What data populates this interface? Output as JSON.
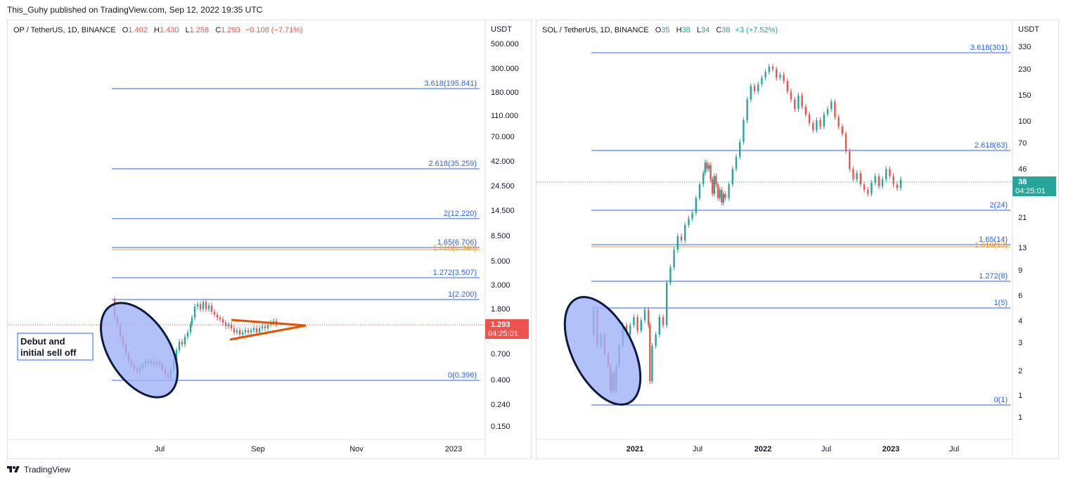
{
  "publisher_line": "This_Guhy published on TradingView.com, Sep 12, 2022 19:35 UTC",
  "footer": {
    "brand": "TradingView",
    "logo_icon": "tradingview-logo-icon"
  },
  "colors": {
    "fib_blue": "#2962ff",
    "fib_orange": "#ff9800",
    "up": "#26a69a",
    "down": "#ef5350",
    "ellipse_fill": "#9fb2f5",
    "triangle": "#e65100"
  },
  "chart_data": [
    {
      "type": "candlestick",
      "symbol": "OP / TetherUS, 1D, BINANCE",
      "ohlc": {
        "o_label": "O",
        "o": "1.402",
        "h_label": "H",
        "h": "1.430",
        "l_label": "L",
        "l": "1.258",
        "c_label": "C",
        "c": "1.293",
        "change": "−0.108 (−7.71%)"
      },
      "currency": "USDT",
      "y_scale": "log",
      "y_ticks": [
        "500.000",
        "300.000",
        "180.000",
        "110.000",
        "70.000",
        "42.000",
        "24.500",
        "14.500",
        "8.500",
        "5.000",
        "3.000",
        "1.800",
        "0.700",
        "0.400",
        "0.240",
        "0.150"
      ],
      "x_ticks": [
        "Jul",
        "Sep",
        "Nov",
        "2023"
      ],
      "last_price": "1.293",
      "countdown": "04:25:01",
      "fib_levels": [
        {
          "label": "3.618(195.841)",
          "value": 195.841
        },
        {
          "label": "2.618(35.259)",
          "value": 35.259
        },
        {
          "label": "2(12.220)",
          "value": 12.22
        },
        {
          "label": "1.65(6.706)",
          "value": 6.706
        },
        {
          "label": "1.618(6.348)",
          "value": 6.348,
          "color": "orange"
        },
        {
          "label": "1.272(3.507)",
          "value": 3.507
        },
        {
          "label": "1(2.200)",
          "value": 2.2
        },
        {
          "label": "0(0.396)",
          "value": 0.396
        }
      ],
      "annotation": "Debut and\ninitial sell off",
      "price_path": [
        [
          0,
          2.2
        ],
        [
          4,
          1.5
        ],
        [
          8,
          1.3
        ],
        [
          12,
          1.0
        ],
        [
          16,
          0.85
        ],
        [
          20,
          0.7
        ],
        [
          24,
          0.6
        ],
        [
          28,
          0.55
        ],
        [
          32,
          0.5
        ],
        [
          36,
          0.48
        ],
        [
          40,
          0.52
        ],
        [
          44,
          0.55
        ],
        [
          48,
          0.6
        ],
        [
          52,
          0.57
        ],
        [
          56,
          0.6
        ],
        [
          60,
          0.55
        ],
        [
          64,
          0.58
        ],
        [
          68,
          0.55
        ],
        [
          72,
          0.5
        ],
        [
          76,
          0.45
        ],
        [
          80,
          0.42
        ],
        [
          84,
          0.5
        ],
        [
          88,
          0.6
        ],
        [
          92,
          0.75
        ],
        [
          96,
          0.9
        ],
        [
          100,
          0.85
        ],
        [
          104,
          1.0
        ],
        [
          108,
          1.1
        ],
        [
          112,
          1.3
        ],
        [
          114,
          1.5
        ],
        [
          118,
          1.9
        ],
        [
          122,
          2.0
        ],
        [
          126,
          1.8
        ],
        [
          130,
          2.1
        ],
        [
          134,
          1.8
        ],
        [
          138,
          1.95
        ],
        [
          142,
          1.7
        ],
        [
          146,
          1.6
        ],
        [
          150,
          1.5
        ],
        [
          154,
          1.45
        ],
        [
          158,
          1.35
        ],
        [
          162,
          1.25
        ],
        [
          166,
          1.3
        ],
        [
          170,
          1.2
        ],
        [
          174,
          1.1
        ],
        [
          178,
          1.15
        ],
        [
          182,
          1.05
        ],
        [
          186,
          1.1
        ],
        [
          190,
          1.15
        ],
        [
          194,
          1.1
        ],
        [
          198,
          1.15
        ],
        [
          202,
          1.2
        ],
        [
          206,
          1.1
        ],
        [
          210,
          1.2
        ],
        [
          214,
          1.25
        ],
        [
          218,
          1.2
        ],
        [
          222,
          1.3
        ],
        [
          226,
          1.35
        ],
        [
          230,
          1.4
        ],
        [
          234,
          1.3
        ]
      ]
    },
    {
      "type": "candlestick",
      "symbol": "SOL / TetherUS, 1D, BINANCE",
      "ohlc": {
        "o_label": "O",
        "o": "35",
        "h_label": "H",
        "h": "38",
        "l_label": "L",
        "l": "34",
        "c_label": "C",
        "c": "38",
        "change": "+3 (+7.52%)"
      },
      "currency": "USDT",
      "y_scale": "log",
      "y_ticks": [
        "330",
        "230",
        "150",
        "100",
        "70",
        "46",
        "21",
        "13",
        "9",
        "6",
        "4",
        "3",
        "2",
        "1",
        "1"
      ],
      "x_ticks": [
        "2021",
        "Jul",
        "2022",
        "Jul",
        "2023",
        "Jul"
      ],
      "last_price": "38",
      "countdown": "04:25:01",
      "fib_levels": [
        {
          "label": "3.618(301)",
          "value": 301
        },
        {
          "label": "2.618(63)",
          "value": 63
        },
        {
          "label": "2(24)",
          "value": 24
        },
        {
          "label": "1.65(14)",
          "value": 14
        },
        {
          "label": "1.618(13)",
          "value": 13.3,
          "color": "orange"
        },
        {
          "label": "1.272(8)",
          "value": 7.8
        },
        {
          "label": "1(5)",
          "value": 5.1
        },
        {
          "label": "0(1)",
          "value": 0.95
        }
      ],
      "price_path": [
        [
          0,
          3.0
        ],
        [
          10,
          4.5
        ],
        [
          20,
          2.5
        ],
        [
          30,
          3.0
        ],
        [
          40,
          2.2
        ],
        [
          50,
          1.8
        ],
        [
          56,
          1.2
        ],
        [
          60,
          1.6
        ],
        [
          66,
          1.2
        ],
        [
          72,
          1.8
        ],
        [
          80,
          2.5
        ],
        [
          90,
          3.5
        ],
        [
          100,
          3.0
        ],
        [
          110,
          3.5
        ],
        [
          120,
          4.0
        ],
        [
          130,
          3.2
        ],
        [
          140,
          3.8
        ],
        [
          150,
          4.5
        ],
        [
          160,
          3.5
        ],
        [
          164,
          1.4
        ],
        [
          170,
          2.5
        ],
        [
          180,
          3.0
        ],
        [
          190,
          4.0
        ],
        [
          200,
          3.5
        ],
        [
          210,
          7
        ],
        [
          220,
          9
        ],
        [
          230,
          12
        ],
        [
          240,
          15
        ],
        [
          250,
          14
        ],
        [
          260,
          18
        ],
        [
          270,
          20
        ],
        [
          280,
          22
        ],
        [
          290,
          28
        ],
        [
          300,
          35
        ],
        [
          310,
          42
        ],
        [
          315,
          50
        ],
        [
          320,
          45
        ],
        [
          325,
          48
        ],
        [
          330,
          38
        ],
        [
          335,
          30
        ],
        [
          340,
          40
        ],
        [
          345,
          35
        ],
        [
          350,
          28
        ],
        [
          355,
          32
        ],
        [
          360,
          26
        ],
        [
          365,
          30
        ],
        [
          370,
          28
        ],
        [
          380,
          35
        ],
        [
          390,
          45
        ],
        [
          400,
          55
        ],
        [
          410,
          70
        ],
        [
          420,
          100
        ],
        [
          430,
          140
        ],
        [
          440,
          175
        ],
        [
          450,
          160
        ],
        [
          460,
          180
        ],
        [
          470,
          200
        ],
        [
          480,
          220
        ],
        [
          490,
          240
        ],
        [
          500,
          230
        ],
        [
          510,
          200
        ],
        [
          520,
          210
        ],
        [
          530,
          190
        ],
        [
          540,
          160
        ],
        [
          550,
          140
        ],
        [
          560,
          120
        ],
        [
          570,
          150
        ],
        [
          580,
          125
        ],
        [
          590,
          110
        ],
        [
          600,
          95
        ],
        [
          610,
          85
        ],
        [
          620,
          100
        ],
        [
          630,
          90
        ],
        [
          640,
          110
        ],
        [
          650,
          120
        ],
        [
          660,
          135
        ],
        [
          670,
          105
        ],
        [
          680,
          90
        ],
        [
          690,
          80
        ],
        [
          700,
          60
        ],
        [
          710,
          45
        ],
        [
          720,
          38
        ],
        [
          730,
          42
        ],
        [
          740,
          35
        ],
        [
          750,
          32
        ],
        [
          760,
          30
        ],
        [
          770,
          36
        ],
        [
          780,
          40
        ],
        [
          790,
          34
        ],
        [
          800,
          38
        ],
        [
          810,
          45
        ],
        [
          820,
          40
        ],
        [
          830,
          35
        ],
        [
          840,
          33
        ],
        [
          850,
          38
        ]
      ]
    }
  ]
}
